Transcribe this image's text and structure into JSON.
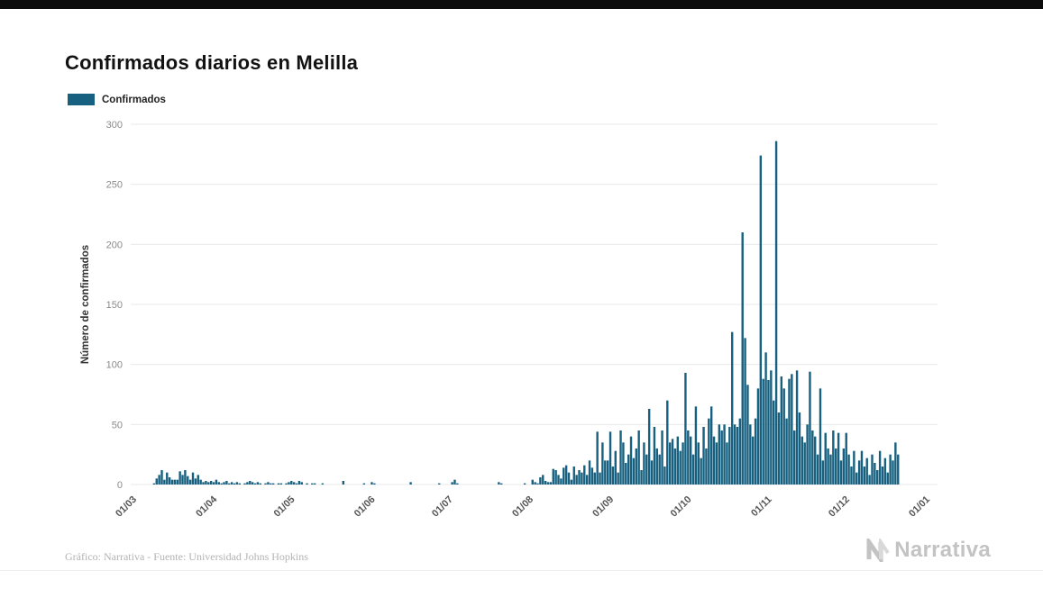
{
  "page": {
    "title": "Confirmados diarios en Melilla"
  },
  "legend": {
    "label": "Confirmados"
  },
  "footer": {
    "credit": "Gráfico: Narrativa - Fuente: Universidad Johns Hopkins",
    "logo_text": "Narrativa"
  },
  "colors": {
    "bar": "#17607F",
    "grid": "#e9e9e9",
    "ytick_text": "#8a8a8a",
    "xtick_text": "#555555",
    "axis_title_text": "#333333"
  },
  "chart_data": {
    "type": "bar",
    "title": "Confirmados diarios en Melilla",
    "xlabel": "",
    "ylabel": "Número de confirmados",
    "ylim": [
      0,
      300
    ],
    "yticks": [
      0,
      50,
      100,
      150,
      200,
      250,
      300
    ],
    "grid": "horizontal",
    "legend_position": "top-left",
    "xticks": [
      {
        "label": "01/03",
        "day": 0
      },
      {
        "label": "01/04",
        "day": 31
      },
      {
        "label": "01/05",
        "day": 61
      },
      {
        "label": "01/06",
        "day": 92
      },
      {
        "label": "01/07",
        "day": 122
      },
      {
        "label": "01/08",
        "day": 153
      },
      {
        "label": "01/09",
        "day": 184
      },
      {
        "label": "01/10",
        "day": 214
      },
      {
        "label": "01/11",
        "day": 245
      },
      {
        "label": "01/12",
        "day": 275
      },
      {
        "label": "01/01",
        "day": 306
      }
    ],
    "series": [
      {
        "name": "Confirmados",
        "start_date": "01/03",
        "values": [
          0,
          0,
          0,
          0,
          0,
          0,
          0,
          0,
          0,
          1,
          5,
          8,
          12,
          4,
          10,
          6,
          4,
          4,
          4,
          11,
          8,
          12,
          7,
          4,
          10,
          5,
          8,
          4,
          2,
          3,
          2,
          3,
          2,
          4,
          2,
          1,
          2,
          3,
          1,
          2,
          1,
          2,
          1,
          0,
          1,
          2,
          3,
          2,
          1,
          2,
          1,
          0,
          1,
          2,
          1,
          1,
          0,
          1,
          1,
          0,
          1,
          2,
          3,
          2,
          1,
          3,
          2,
          0,
          1,
          0,
          1,
          1,
          0,
          0,
          1,
          0,
          0,
          0,
          0,
          0,
          0,
          0,
          3,
          0,
          0,
          0,
          0,
          0,
          0,
          0,
          1,
          0,
          0,
          2,
          1,
          0,
          0,
          0,
          0,
          0,
          0,
          0,
          0,
          0,
          0,
          0,
          0,
          0,
          2,
          0,
          0,
          0,
          0,
          0,
          0,
          0,
          0,
          0,
          0,
          1,
          0,
          0,
          0,
          0,
          2,
          4,
          1,
          0,
          0,
          0,
          0,
          0,
          0,
          0,
          0,
          0,
          0,
          0,
          0,
          0,
          0,
          0,
          2,
          1,
          0,
          0,
          0,
          0,
          0,
          0,
          0,
          0,
          1,
          0,
          0,
          4,
          2,
          1,
          6,
          8,
          3,
          2,
          2,
          13,
          12,
          8,
          5,
          14,
          16,
          10,
          4,
          15,
          8,
          12,
          10,
          16,
          8,
          20,
          14,
          10,
          44,
          10,
          35,
          20,
          20,
          44,
          15,
          28,
          10,
          45,
          35,
          18,
          25,
          40,
          22,
          30,
          45,
          12,
          35,
          25,
          63,
          20,
          48,
          30,
          25,
          45,
          15,
          70,
          35,
          38,
          30,
          40,
          28,
          35,
          93,
          45,
          40,
          25,
          65,
          35,
          22,
          48,
          30,
          55,
          65,
          40,
          35,
          50,
          45,
          50,
          35,
          48,
          127,
          50,
          48,
          55,
          210,
          122,
          83,
          50,
          40,
          55,
          80,
          274,
          88,
          110,
          87,
          95,
          70,
          286,
          60,
          90,
          80,
          55,
          88,
          92,
          45,
          95,
          60,
          40,
          35,
          50,
          94,
          45,
          40,
          25,
          80,
          20,
          43,
          30,
          25,
          45,
          30,
          43,
          20,
          30,
          43,
          25,
          15,
          28,
          10,
          20,
          28,
          15,
          22,
          8,
          25,
          18,
          12,
          28,
          15,
          22,
          10,
          25,
          20,
          35,
          25
        ]
      }
    ]
  }
}
